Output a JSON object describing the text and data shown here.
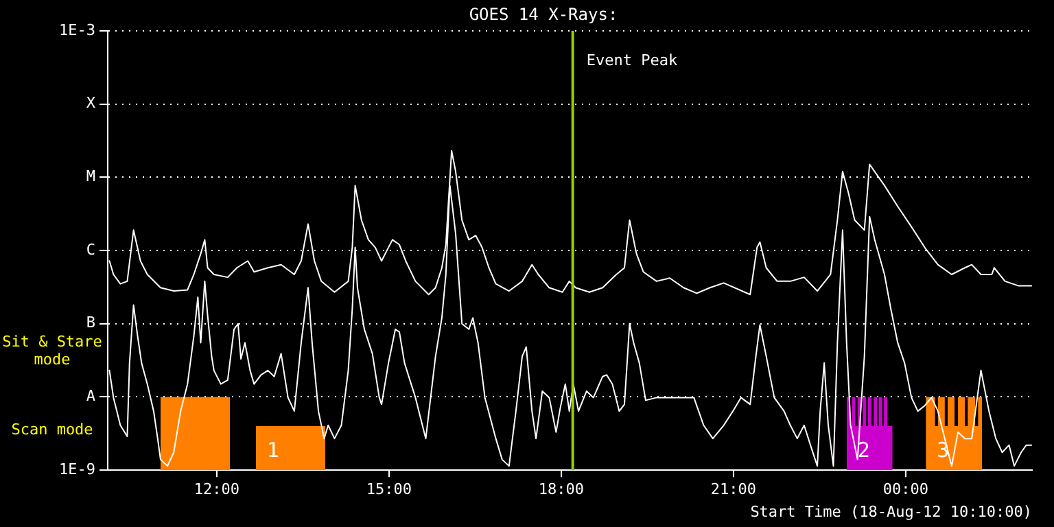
{
  "chart_data": {
    "type": "line",
    "title": "GOES 14 X-Rays:",
    "xlabel": "Start Time (18-Aug-12 10:10:00)",
    "xlim": [
      10.1,
      26.2
    ],
    "xticks": [
      {
        "value": 12,
        "label": "12:00"
      },
      {
        "value": 15,
        "label": "15:00"
      },
      {
        "value": 18,
        "label": "18:00"
      },
      {
        "value": 21,
        "label": "21:00"
      },
      {
        "value": 24,
        "label": "00:00"
      }
    ],
    "log": true,
    "ylim": [
      1e-09,
      0.001
    ],
    "yticks": [
      {
        "value": 1e-09,
        "label": "1E-9"
      },
      {
        "value": 1e-08,
        "label": "A"
      },
      {
        "value": 1e-07,
        "label": "B"
      },
      {
        "value": 1e-06,
        "label": "C"
      },
      {
        "value": 1e-05,
        "label": "M"
      },
      {
        "value": 0.0001,
        "label": "X"
      },
      {
        "value": 0.001,
        "label": "1E-3"
      }
    ],
    "grid": "y",
    "legend": false,
    "series": [
      {
        "type": "line",
        "color": "#ffffff",
        "x": [
          10.13,
          10.2,
          10.32,
          10.44,
          10.55,
          10.67,
          10.79,
          11.02,
          11.25,
          11.49,
          11.6,
          11.72,
          11.79,
          11.84,
          11.95,
          12.19,
          12.35,
          12.54,
          12.65,
          12.89,
          13.12,
          13.35,
          13.47,
          13.59,
          13.7,
          13.82,
          14.05,
          14.29,
          14.36,
          14.41,
          14.52,
          14.64,
          14.76,
          14.87,
          14.99,
          15.06,
          15.18,
          15.29,
          15.46,
          15.69,
          15.81,
          15.92,
          15.99,
          16.09,
          16.16,
          16.27,
          16.39,
          16.51,
          16.62,
          16.74,
          16.86,
          17.09,
          17.32,
          17.49,
          17.6,
          17.79,
          18.02,
          18.14,
          18.25,
          18.49,
          18.72,
          18.96,
          19.1,
          19.19,
          19.31,
          19.43,
          19.66,
          19.89,
          20.13,
          20.36,
          20.59,
          20.83,
          21.29,
          21.41,
          21.46,
          21.57,
          21.76,
          21.99,
          22.23,
          22.46,
          22.69,
          22.81,
          22.9,
          23.0,
          23.11,
          23.28,
          23.37,
          23.63,
          23.86,
          24.1,
          24.33,
          24.56,
          24.8,
          25.03,
          25.15,
          25.31,
          25.5,
          25.54,
          25.73,
          25.96,
          26.19
        ],
        "values": [
          7.2e-07,
          4.7e-07,
          3.5e-07,
          3.8e-07,
          1.9e-06,
          7.2e-07,
          4.7e-07,
          3.1e-07,
          2.8e-07,
          2.9e-07,
          4.7e-07,
          9e-07,
          1.4e-06,
          5.8e-07,
          4.7e-07,
          4.3e-07,
          5.8e-07,
          7.2e-07,
          5.1e-07,
          5.8e-07,
          6.4e-07,
          4.7e-07,
          7.2e-07,
          2.3e-06,
          7.2e-07,
          3.8e-07,
          2.7e-07,
          3.8e-07,
          1.1e-06,
          7.7e-06,
          2.6e-06,
          1.4e-06,
          1.1e-06,
          7.2e-07,
          1.1e-06,
          1.4e-06,
          1.2e-06,
          7.2e-07,
          3.8e-07,
          2.5e-07,
          3.1e-07,
          5.8e-07,
          1.2e-06,
          2.3e-05,
          1.2e-05,
          2.6e-06,
          1.4e-06,
          1.6e-06,
          1.1e-06,
          5.8e-07,
          3.5e-07,
          2.8e-07,
          3.8e-07,
          6.4e-07,
          4.7e-07,
          3.1e-07,
          2.7e-07,
          3.8e-07,
          3.1e-07,
          2.7e-07,
          3.1e-07,
          4.7e-07,
          5.8e-07,
          2.6e-06,
          9e-07,
          5.1e-07,
          3.8e-07,
          4.2e-07,
          3.1e-07,
          2.6e-07,
          3.1e-07,
          3.6e-07,
          2.5e-07,
          1.1e-06,
          1.3e-06,
          5.8e-07,
          3.8e-07,
          3.8e-07,
          4.3e-07,
          2.8e-07,
          4.7e-07,
          2.6e-06,
          1.2e-05,
          6.2e-06,
          2.6e-06,
          1.9e-06,
          1.5e-05,
          7.7e-06,
          4e-06,
          2.1e-06,
          1.1e-06,
          6.4e-07,
          4.7e-07,
          5.8e-07,
          6.4e-07,
          4.7e-07,
          4.7e-07,
          5.8e-07,
          3.8e-07,
          3.3e-07,
          3.3e-07
        ]
      },
      {
        "type": "line",
        "color": "#ffffff",
        "x": [
          10.13,
          10.2,
          10.32,
          10.44,
          10.48,
          10.55,
          10.62,
          10.69,
          10.79,
          10.9,
          10.97,
          11.02,
          11.14,
          11.25,
          11.37,
          11.49,
          11.6,
          11.67,
          11.72,
          11.79,
          11.84,
          11.91,
          11.95,
          12.07,
          12.19,
          12.3,
          12.37,
          12.42,
          12.49,
          12.58,
          12.65,
          12.77,
          12.89,
          13.0,
          13.12,
          13.24,
          13.35,
          13.47,
          13.59,
          13.66,
          13.77,
          13.87,
          13.94,
          14.05,
          14.17,
          14.29,
          14.36,
          14.41,
          14.45,
          14.57,
          14.71,
          14.83,
          14.87,
          14.99,
          15.11,
          15.18,
          15.27,
          15.46,
          15.64,
          15.81,
          15.92,
          15.99,
          16.06,
          16.16,
          16.27,
          16.39,
          16.46,
          16.55,
          16.67,
          16.86,
          16.97,
          17.09,
          17.21,
          17.32,
          17.39,
          17.49,
          17.56,
          17.67,
          17.79,
          17.91,
          17.98,
          18.07,
          18.14,
          18.21,
          18.3,
          18.44,
          18.56,
          18.72,
          18.79,
          18.89,
          19.01,
          19.1,
          19.19,
          19.26,
          19.36,
          19.47,
          19.66,
          19.89,
          20.13,
          20.31,
          20.48,
          20.64,
          20.83,
          20.99,
          21.13,
          21.29,
          21.39,
          21.46,
          21.57,
          21.71,
          21.88,
          21.99,
          22.11,
          22.23,
          22.34,
          22.46,
          22.51,
          22.58,
          22.65,
          22.74,
          22.81,
          22.9,
          22.97,
          23.04,
          23.16,
          23.28,
          23.37,
          23.46,
          23.63,
          23.74,
          23.86,
          23.98,
          24.1,
          24.21,
          24.33,
          24.45,
          24.56,
          24.68,
          24.8,
          24.91,
          25.03,
          25.15,
          25.31,
          25.45,
          25.57,
          25.68,
          25.8,
          25.89,
          26.01,
          26.1,
          26.19
        ],
        "values": [
          2.3e-08,
          9.8e-09,
          4.1e-09,
          2.9e-09,
          2.9e-08,
          1.8e-07,
          6.8e-08,
          2.9e-08,
          1.5e-08,
          6.4e-09,
          2.7e-09,
          1.4e-09,
          1.14e-09,
          1.75e-09,
          6.4e-09,
          1.5e-08,
          6.8e-08,
          2.3e-07,
          5.5e-08,
          3.8e-07,
          1.3e-07,
          3.6e-08,
          2.3e-08,
          1.5e-08,
          1.7e-08,
          8.4e-08,
          1e-07,
          3.3e-08,
          5.5e-08,
          2.3e-08,
          1.5e-08,
          2e-08,
          2.3e-08,
          1.9e-08,
          3.9e-08,
          9.8e-09,
          6.4e-09,
          5.5e-08,
          3.1e-07,
          5.5e-08,
          6.4e-09,
          2.7e-09,
          4.1e-09,
          2.7e-09,
          4.1e-09,
          2.3e-08,
          1.6e-07,
          1.1e-06,
          3.1e-07,
          8.4e-08,
          3.9e-08,
          9.8e-09,
          7.9e-09,
          2.9e-08,
          8.4e-08,
          7.7e-08,
          2.9e-08,
          9.8e-09,
          2.7e-09,
          3.6e-08,
          1.2e-07,
          4.7e-07,
          7.7e-06,
          1.7e-06,
          1e-07,
          8.4e-08,
          1.2e-07,
          5.5e-08,
          9.8e-09,
          2.7e-09,
          1.4e-09,
          1.14e-09,
          6.4e-09,
          3.6e-08,
          4.8e-08,
          6.4e-09,
          2.7e-09,
          1.2e-08,
          9.8e-09,
          3.3e-09,
          6.9e-09,
          1.5e-08,
          6.4e-09,
          1.5e-08,
          6.4e-09,
          1.2e-08,
          9.8e-09,
          1.9e-08,
          2e-08,
          1.5e-08,
          6.4e-09,
          7.9e-09,
          1e-07,
          5.5e-08,
          2.9e-08,
          9e-09,
          9.8e-09,
          9.8e-09,
          9.8e-09,
          9.8e-09,
          4.1e-09,
          2.7e-09,
          4.1e-09,
          6.4e-09,
          9.8e-09,
          7.9e-09,
          3.6e-08,
          9.6e-08,
          3.6e-08,
          9.8e-09,
          6.4e-09,
          4.1e-09,
          2.7e-09,
          4.1e-09,
          2.2e-09,
          1.14e-09,
          6.4e-09,
          2.9e-08,
          4.1e-09,
          1.14e-09,
          5.5e-08,
          1.9e-06,
          5.5e-08,
          4.1e-09,
          1.4e-09,
          3.6e-08,
          2.9e-06,
          1.4e-06,
          4.7e-07,
          1.6e-07,
          5.5e-08,
          2.9e-08,
          9.8e-09,
          6.4e-09,
          7.6e-09,
          9.8e-09,
          6.4e-09,
          2.7e-09,
          1.14e-09,
          3.3e-09,
          2.7e-09,
          2.7e-09,
          2.3e-08,
          6.4e-09,
          2.7e-09,
          1.75e-09,
          2.2e-09,
          1.14e-09,
          1.75e-09,
          2.2e-09,
          2.2e-09
        ]
      },
      {
        "type": "area",
        "color": "#ff8000",
        "x": [
          11.02,
          12.23
        ],
        "values": [
          1e-08,
          1e-08
        ]
      },
      {
        "type": "area",
        "name": "1",
        "color": "#ff8000",
        "x": [
          12.68,
          13.89
        ],
        "values": [
          4e-09,
          4e-09
        ]
      },
      {
        "type": "area",
        "name": "2",
        "color": "#cc00cc",
        "x": [
          22.97,
          23.03,
          23.03,
          23.06,
          23.06,
          23.12,
          23.12,
          23.16,
          23.16,
          23.22,
          23.22,
          23.25,
          23.25,
          23.31,
          23.31,
          23.34,
          23.34,
          23.4,
          23.4,
          23.44,
          23.44,
          23.5,
          23.5,
          23.53,
          23.53,
          23.59,
          23.59,
          23.62,
          23.62,
          23.68,
          23.68,
          23.77
        ],
        "values": [
          1e-08,
          1e-08,
          4e-09,
          4e-09,
          1e-08,
          1e-08,
          4e-09,
          4e-09,
          1e-08,
          1e-08,
          4e-09,
          4e-09,
          1e-08,
          1e-08,
          4e-09,
          4e-09,
          1e-08,
          1e-08,
          4e-09,
          4e-09,
          1e-08,
          1e-08,
          4e-09,
          4e-09,
          1e-08,
          1e-08,
          4e-09,
          4e-09,
          1e-08,
          1e-08,
          4e-09,
          4e-09
        ]
      },
      {
        "type": "area",
        "name": "3",
        "color": "#ff8000",
        "x": [
          24.35,
          24.51,
          24.51,
          24.56,
          24.56,
          24.68,
          24.68,
          24.73,
          24.73,
          24.85,
          24.85,
          24.91,
          24.91,
          25.03,
          25.03,
          25.08,
          25.08,
          25.21,
          25.21,
          25.26,
          25.26,
          25.33
        ],
        "values": [
          1e-08,
          1e-08,
          4e-09,
          4e-09,
          1e-08,
          1e-08,
          4e-09,
          4e-09,
          1e-08,
          1e-08,
          4e-09,
          4e-09,
          1e-08,
          1e-08,
          4e-09,
          4e-09,
          1e-08,
          1e-08,
          4e-09,
          4e-09,
          1e-08,
          1e-08
        ]
      }
    ],
    "ref_lines": [
      {
        "axis": "x",
        "value": 18.2,
        "label": "Event Peak",
        "color": "#99cc00"
      }
    ],
    "annotations": [
      "Sit & Stare mode",
      "Scan mode"
    ]
  }
}
